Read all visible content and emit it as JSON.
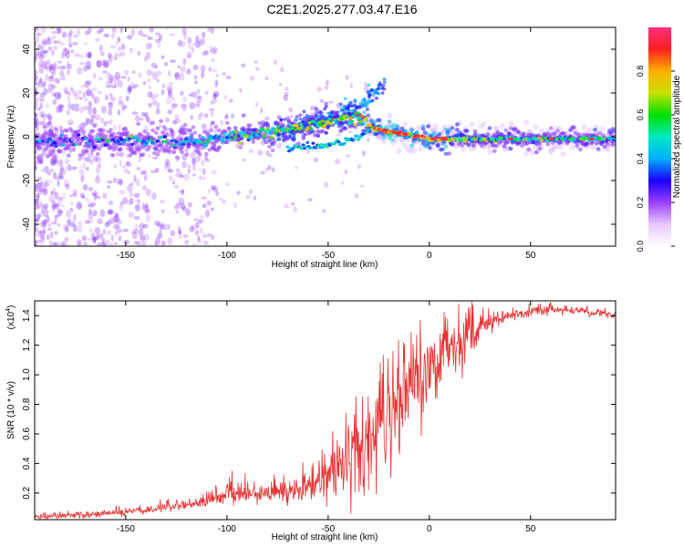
{
  "page_title": "C2E1.2025.277.03.47.E16",
  "chart_data": [
    {
      "type": "heatmap",
      "title": "C2E1.2025.277.03.47.E16",
      "xlabel": "Height of straight line (km)",
      "ylabel": "Frequency (Hz)",
      "xlim": [
        -195,
        92
      ],
      "ylim": [
        -50,
        50
      ],
      "x_ticks": [
        -150,
        -100,
        -50,
        0,
        50
      ],
      "x_tick_labels": [
        "-150",
        "-100",
        "-50",
        "0",
        "50"
      ],
      "y_ticks": [
        -40,
        -20,
        0,
        20,
        40
      ],
      "y_tick_labels": [
        "-40",
        "-20",
        "0",
        "20",
        "40"
      ],
      "colorbar": {
        "label": "Normalized spectral amplitude",
        "range": [
          0,
          1
        ],
        "ticks": [
          0.0,
          0.2,
          0.4,
          0.6,
          0.8
        ],
        "tick_labels": [
          "0.0",
          "0.2",
          "0.4",
          "0.6",
          "0.8"
        ],
        "colors": [
          "#ffffff",
          "#e8c8ff",
          "#9a40ff",
          "#1a00ff",
          "#00b0ff",
          "#00e8c0",
          "#00e000",
          "#c8e000",
          "#ffb000",
          "#ff2020",
          "#ff3080"
        ]
      },
      "main_ridge": {
        "description_free_points_x": [
          -195,
          -160,
          -130,
          -110,
          -100,
          -80,
          -60,
          -45,
          -35,
          -28,
          -20,
          -10,
          0,
          10,
          20,
          40,
          60,
          80,
          92
        ],
        "frequency": [
          -2,
          -2,
          -2,
          -2,
          0,
          2,
          5,
          8,
          9,
          4,
          2,
          1,
          -1,
          -1,
          -1,
          -1,
          -1,
          -1,
          -1
        ],
        "amplitude": [
          0.25,
          0.3,
          0.35,
          0.38,
          0.45,
          0.55,
          0.55,
          0.6,
          0.65,
          0.75,
          0.9,
          0.85,
          0.8,
          0.7,
          0.55,
          0.5,
          0.5,
          0.5,
          0.5
        ]
      },
      "secondary_branch": {
        "x": [
          -70,
          -55,
          -45,
          -38,
          -30
        ],
        "frequency": [
          -5,
          -4,
          -3,
          -1,
          2
        ]
      },
      "upper_branch": {
        "x": [
          -75,
          -60,
          -45,
          -32,
          -22
        ],
        "frequency": [
          2,
          6,
          10,
          16,
          24
        ]
      }
    },
    {
      "type": "line",
      "xlabel": "Height of straight line (km)",
      "ylabel": "SNR (10 * v/v)",
      "y_scale_label": "(x10",
      "y_scale_exponent": "4",
      "xlim": [
        -195,
        92
      ],
      "ylim": [
        0.02,
        1.5
      ],
      "x_ticks": [
        -150,
        -100,
        -50,
        0,
        50
      ],
      "x_tick_labels": [
        "-150",
        "-100",
        "-50",
        "0",
        "50"
      ],
      "y_ticks": [
        0.2,
        0.4,
        0.6,
        0.8,
        1.0,
        1.2,
        1.4
      ],
      "y_tick_labels": [
        "0.2",
        "0.4",
        "0.6",
        "0.8",
        "1.0",
        "1.2",
        "1.4"
      ],
      "color": "#e83030",
      "trend_x": [
        -195,
        -170,
        -150,
        -130,
        -110,
        -100,
        -85,
        -70,
        -55,
        -45,
        -38,
        -33,
        -28,
        -20,
        -10,
        0,
        10,
        20,
        30,
        40,
        50,
        60,
        70,
        80,
        92
      ],
      "trend_y": [
        0.04,
        0.05,
        0.07,
        0.1,
        0.14,
        0.2,
        0.18,
        0.2,
        0.26,
        0.36,
        0.48,
        0.42,
        0.5,
        0.72,
        0.9,
        1.0,
        1.1,
        1.25,
        1.35,
        1.4,
        1.42,
        1.44,
        1.43,
        1.42,
        1.4
      ],
      "noise_amplitude_x": [
        -195,
        -120,
        -100,
        -60,
        -45,
        -33,
        -25,
        -10,
        10,
        25,
        40,
        92
      ],
      "noise_amplitude_y": [
        0.015,
        0.03,
        0.06,
        0.08,
        0.2,
        0.35,
        0.35,
        0.3,
        0.25,
        0.08,
        0.03,
        0.03
      ]
    }
  ]
}
